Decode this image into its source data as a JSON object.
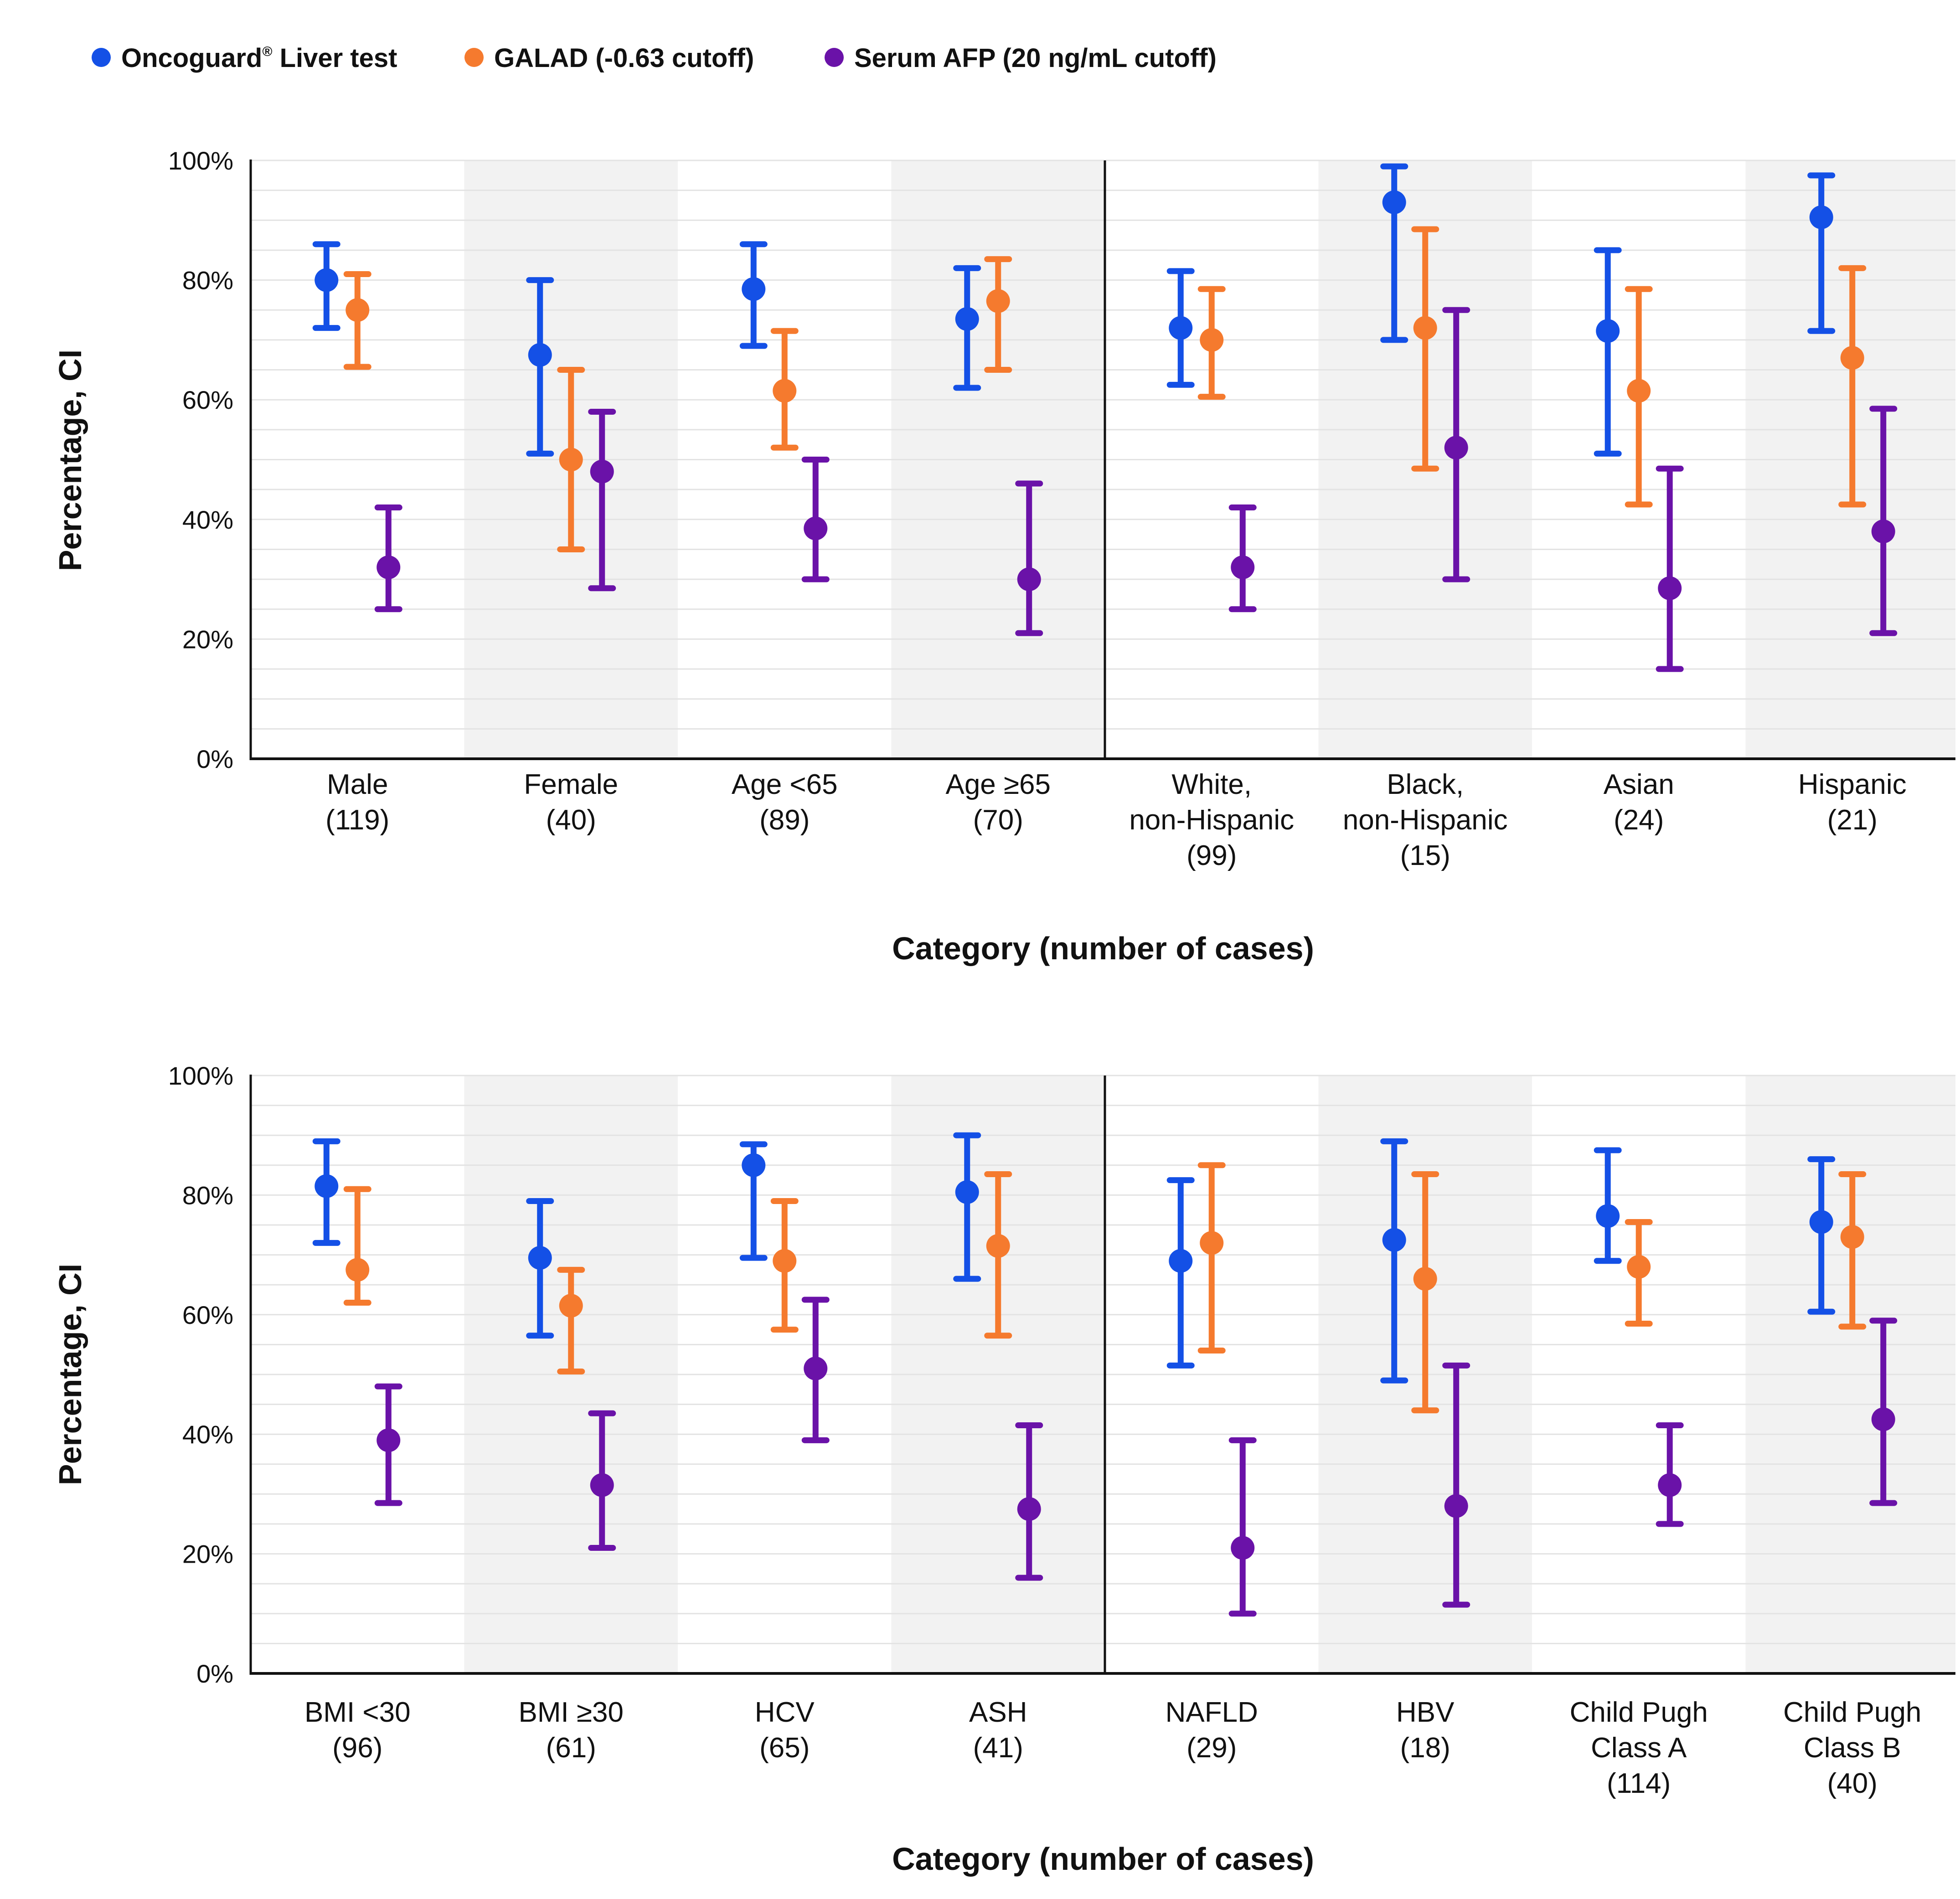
{
  "legend": {
    "items": [
      {
        "label": "Oncoguard",
        "sup": "®",
        "suffix": " Liver test",
        "color": "#1450e6"
      },
      {
        "label": "GALAD (-0.63 cutoff)",
        "color": "#f57a2e"
      },
      {
        "label": "Serum AFP (20 ng/mL cutoff)",
        "color": "#6a12a8"
      }
    ]
  },
  "colors": {
    "oncoguard": "#1450e6",
    "galad": "#f57a2e",
    "afp": "#6a12a8",
    "band_shade": "#f2f2f2",
    "gridline": "#e3e3e3",
    "axis": "#111111"
  },
  "chart_data": [
    {
      "type": "scatter",
      "subtype": "point-with-error-bars",
      "xlabel": "Category (number of cases)",
      "ylabel": "Percentage, CI",
      "ylim": [
        0,
        100
      ],
      "yticks": [
        "0%",
        "20%",
        "40%",
        "60%",
        "80%",
        "100%"
      ],
      "grid": true,
      "legend_position": "top-left",
      "categories": [
        {
          "lines": [
            "Male",
            "(119)"
          ]
        },
        {
          "lines": [
            "Female",
            "(40)"
          ]
        },
        {
          "lines": [
            "Age <65",
            "(89)"
          ]
        },
        {
          "lines": [
            "Age ≥65",
            "(70)"
          ]
        },
        {
          "lines": [
            "White,",
            "non-Hispanic",
            "(99)"
          ]
        },
        {
          "lines": [
            "Black,",
            "non-Hispanic",
            "(15)"
          ]
        },
        {
          "lines": [
            "Asian",
            "(24)"
          ]
        },
        {
          "lines": [
            "Hispanic",
            "(21)"
          ]
        }
      ],
      "series": [
        {
          "name": "Oncoguard® Liver test",
          "values": [
            80,
            67.5,
            78.5,
            73.5,
            72,
            93,
            71.5,
            90.5
          ],
          "ci_low": [
            72,
            51,
            69,
            62,
            62.5,
            70,
            51,
            71.5
          ],
          "ci_high": [
            86,
            80,
            86,
            82,
            81.5,
            99,
            85,
            97.5
          ]
        },
        {
          "name": "GALAD (-0.63 cutoff)",
          "values": [
            75,
            50,
            61.5,
            76.5,
            70,
            72,
            61.5,
            67
          ],
          "ci_low": [
            65.5,
            35,
            52,
            65,
            60.5,
            48.5,
            42.5,
            42.5
          ],
          "ci_high": [
            81,
            65,
            71.5,
            83.5,
            78.5,
            88.5,
            78.5,
            82
          ]
        },
        {
          "name": "Serum AFP (20 ng/mL cutoff)",
          "values": [
            32,
            48,
            38.5,
            30,
            32,
            52,
            28.5,
            38
          ],
          "ci_low": [
            25,
            28.5,
            30,
            21,
            25,
            30,
            15,
            21
          ],
          "ci_high": [
            42,
            58,
            50,
            46,
            42,
            75,
            48.5,
            58.5
          ]
        }
      ]
    },
    {
      "type": "scatter",
      "subtype": "point-with-error-bars",
      "xlabel": "Category (number of cases)",
      "ylabel": "Percentage, CI",
      "ylim": [
        0,
        100
      ],
      "yticks": [
        "0%",
        "20%",
        "40%",
        "60%",
        "80%",
        "100%"
      ],
      "grid": true,
      "categories": [
        {
          "lines": [
            "BMI <30",
            "(96)"
          ]
        },
        {
          "lines": [
            "BMI ≥30",
            "(61)"
          ]
        },
        {
          "lines": [
            "HCV",
            "(65)"
          ]
        },
        {
          "lines": [
            "ASH",
            "(41)"
          ]
        },
        {
          "lines": [
            "NAFLD",
            "(29)"
          ]
        },
        {
          "lines": [
            "HBV",
            "(18)"
          ]
        },
        {
          "lines": [
            "Child Pugh",
            "Class A",
            "(114)"
          ]
        },
        {
          "lines": [
            "Child Pugh",
            "Class B",
            "(40)"
          ]
        }
      ],
      "series": [
        {
          "name": "Oncoguard® Liver test",
          "values": [
            81.5,
            69.5,
            85,
            80.5,
            69,
            72.5,
            76.5,
            75.5
          ],
          "ci_low": [
            72,
            56.5,
            69.5,
            66,
            51.5,
            49,
            69,
            60.5
          ],
          "ci_high": [
            89,
            79,
            88.5,
            90,
            82.5,
            89,
            87.5,
            86
          ]
        },
        {
          "name": "GALAD (-0.63 cutoff)",
          "values": [
            67.5,
            61.5,
            69,
            71.5,
            72,
            66,
            68,
            73
          ],
          "ci_low": [
            62,
            50.5,
            57.5,
            56.5,
            54,
            44,
            58.5,
            58
          ],
          "ci_high": [
            81,
            67.5,
            79,
            83.5,
            85,
            83.5,
            75.5,
            83.5
          ]
        },
        {
          "name": "Serum AFP (20 ng/mL cutoff)",
          "values": [
            39,
            31.5,
            51,
            27.5,
            21,
            28,
            31.5,
            42.5
          ],
          "ci_low": [
            28.5,
            21,
            39,
            16,
            10,
            11.5,
            25,
            28.5
          ],
          "ci_high": [
            48,
            43.5,
            62.5,
            41.5,
            39,
            51.5,
            41.5,
            59
          ]
        }
      ]
    }
  ]
}
